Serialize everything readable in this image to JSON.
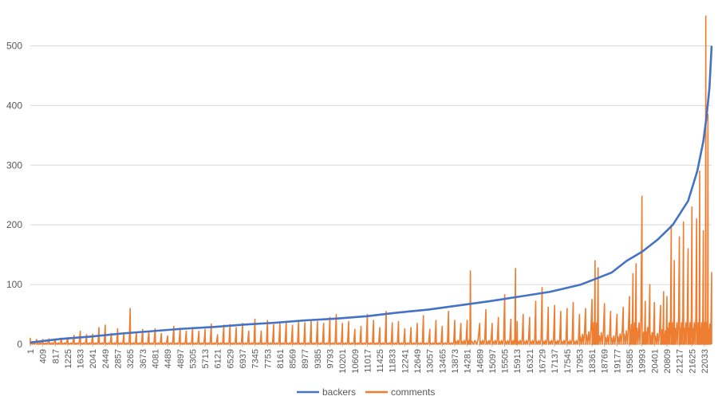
{
  "chart_data": {
    "type": "line",
    "title": "",
    "xlabel": "",
    "ylabel": "",
    "ylim": [
      0,
      550
    ],
    "y_ticks": [
      0,
      100,
      200,
      300,
      400,
      500
    ],
    "grid": "horizontal",
    "legend_position": "bottom",
    "x_count": 22270,
    "x_tick_labels": [
      "1",
      "409",
      "817",
      "1225",
      "1633",
      "2041",
      "2449",
      "2857",
      "3265",
      "3673",
      "4081",
      "4489",
      "4897",
      "5305",
      "5713",
      "6121",
      "6529",
      "6937",
      "7345",
      "7753",
      "8161",
      "8569",
      "8977",
      "9385",
      "9793",
      "10201",
      "10609",
      "11017",
      "11425",
      "11833",
      "12241",
      "12649",
      "13057",
      "13465",
      "13873",
      "14281",
      "14689",
      "15097",
      "15505",
      "15913",
      "16321",
      "16729",
      "17137",
      "17545",
      "17953",
      "18361",
      "18769",
      "19177",
      "19585",
      "19993",
      "20401",
      "20809",
      "21217",
      "21625",
      "22033"
    ],
    "series": [
      {
        "name": "backers",
        "color": "#4472c4",
        "points": [
          [
            1,
            3
          ],
          [
            1000,
            9
          ],
          [
            2000,
            13
          ],
          [
            3000,
            18
          ],
          [
            4000,
            22
          ],
          [
            5000,
            26
          ],
          [
            6000,
            29
          ],
          [
            7000,
            33
          ],
          [
            8000,
            36
          ],
          [
            9000,
            40
          ],
          [
            10000,
            43
          ],
          [
            11000,
            47
          ],
          [
            12000,
            53
          ],
          [
            13000,
            58
          ],
          [
            14000,
            65
          ],
          [
            15000,
            72
          ],
          [
            16000,
            80
          ],
          [
            17000,
            88
          ],
          [
            18000,
            100
          ],
          [
            19000,
            120
          ],
          [
            19500,
            140
          ],
          [
            20000,
            155
          ],
          [
            20500,
            175
          ],
          [
            21000,
            200
          ],
          [
            21500,
            240
          ],
          [
            21800,
            290
          ],
          [
            22000,
            340
          ],
          [
            22100,
            380
          ],
          [
            22200,
            430
          ],
          [
            22270,
            500
          ]
        ]
      },
      {
        "name": "comments",
        "color": "#ed7d31",
        "spikes": [
          [
            1,
            10
          ],
          [
            210,
            8
          ],
          [
            409,
            8
          ],
          [
            610,
            9
          ],
          [
            817,
            9
          ],
          [
            1020,
            10
          ],
          [
            1225,
            11
          ],
          [
            1430,
            15
          ],
          [
            1633,
            22
          ],
          [
            1840,
            16
          ],
          [
            2041,
            17
          ],
          [
            2245,
            28
          ],
          [
            2449,
            32
          ],
          [
            2650,
            18
          ],
          [
            2857,
            26
          ],
          [
            3060,
            19
          ],
          [
            3265,
            60
          ],
          [
            3470,
            20
          ],
          [
            3673,
            25
          ],
          [
            3875,
            22
          ],
          [
            4081,
            26
          ],
          [
            4285,
            18
          ],
          [
            4489,
            14
          ],
          [
            4690,
            30
          ],
          [
            4897,
            27
          ],
          [
            5100,
            22
          ],
          [
            5305,
            28
          ],
          [
            5510,
            22
          ],
          [
            5713,
            25
          ],
          [
            5915,
            34
          ],
          [
            6121,
            16
          ],
          [
            6325,
            32
          ],
          [
            6529,
            33
          ],
          [
            6730,
            28
          ],
          [
            6937,
            35
          ],
          [
            7140,
            22
          ],
          [
            7345,
            42
          ],
          [
            7550,
            22
          ],
          [
            7753,
            40
          ],
          [
            7955,
            33
          ],
          [
            8161,
            36
          ],
          [
            8365,
            38
          ],
          [
            8569,
            32
          ],
          [
            8770,
            38
          ],
          [
            8977,
            36
          ],
          [
            9180,
            40
          ],
          [
            9385,
            38
          ],
          [
            9590,
            35
          ],
          [
            9793,
            45
          ],
          [
            10000,
            50
          ],
          [
            10201,
            35
          ],
          [
            10405,
            38
          ],
          [
            10609,
            25
          ],
          [
            10810,
            30
          ],
          [
            11017,
            50
          ],
          [
            11220,
            40
          ],
          [
            11425,
            28
          ],
          [
            11630,
            55
          ],
          [
            11833,
            36
          ],
          [
            12035,
            38
          ],
          [
            12241,
            26
          ],
          [
            12445,
            28
          ],
          [
            12649,
            35
          ],
          [
            12850,
            48
          ],
          [
            13057,
            25
          ],
          [
            13260,
            40
          ],
          [
            13465,
            30
          ],
          [
            13670,
            55
          ],
          [
            13873,
            40
          ],
          [
            14075,
            35
          ],
          [
            14281,
            40
          ],
          [
            14385,
            123
          ],
          [
            14689,
            35
          ],
          [
            14890,
            58
          ],
          [
            15097,
            35
          ],
          [
            15300,
            45
          ],
          [
            15505,
            83
          ],
          [
            15710,
            42
          ],
          [
            15860,
            127
          ],
          [
            15913,
            38
          ],
          [
            16110,
            50
          ],
          [
            16321,
            45
          ],
          [
            16520,
            72
          ],
          [
            16729,
            95
          ],
          [
            16930,
            62
          ],
          [
            17137,
            65
          ],
          [
            17340,
            55
          ],
          [
            17545,
            60
          ],
          [
            17745,
            70
          ],
          [
            17953,
            50
          ],
          [
            18150,
            60
          ],
          [
            18361,
            75
          ],
          [
            18460,
            140
          ],
          [
            18560,
            128
          ],
          [
            18769,
            68
          ],
          [
            18970,
            55
          ],
          [
            19177,
            50
          ],
          [
            19380,
            62
          ],
          [
            19585,
            80
          ],
          [
            19700,
            118
          ],
          [
            19800,
            135
          ],
          [
            19993,
            248
          ],
          [
            20100,
            72
          ],
          [
            20250,
            100
          ],
          [
            20401,
            70
          ],
          [
            20600,
            65
          ],
          [
            20700,
            88
          ],
          [
            20809,
            80
          ],
          [
            20950,
            200
          ],
          [
            21050,
            140
          ],
          [
            21217,
            180
          ],
          [
            21350,
            205
          ],
          [
            21500,
            160
          ],
          [
            21625,
            230
          ],
          [
            21780,
            210
          ],
          [
            21880,
            290
          ],
          [
            22000,
            190
          ],
          [
            22080,
            550
          ],
          [
            22150,
            385
          ],
          [
            22270,
            120
          ]
        ]
      }
    ]
  }
}
